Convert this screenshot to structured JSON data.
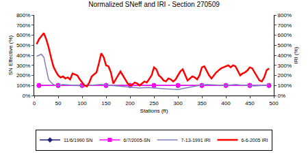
{
  "chart_data": {
    "type": "line",
    "title": "Normalized SNeff and IRI - Section 270509",
    "x_label": "Stations (ft)",
    "y_label": "SN Effective (%)",
    "y2_label": "IRI (%)",
    "xlim": [
      0,
      500
    ],
    "xticks": [
      0,
      50,
      100,
      150,
      200,
      250,
      300,
      350,
      400,
      450,
      500
    ],
    "ylim": [
      0,
      800
    ],
    "yticks": [
      {
        "value": 0,
        "label": "0%"
      },
      {
        "value": 100,
        "label": "100%"
      },
      {
        "value": 200,
        "label": "200%"
      },
      {
        "value": 300,
        "label": "300%"
      },
      {
        "value": 400,
        "label": "400%"
      },
      {
        "value": 500,
        "label": "500%"
      },
      {
        "value": 600,
        "label": "600%"
      },
      {
        "value": 700,
        "label": "700%"
      },
      {
        "value": 800,
        "label": "800%"
      }
    ],
    "y2lim": [
      0,
      800
    ],
    "y2ticks": [
      {
        "value": 0,
        "label": "0%"
      },
      {
        "value": 100,
        "label": "100%"
      },
      {
        "value": 200,
        "label": "200%"
      },
      {
        "value": 300,
        "label": "300%"
      },
      {
        "value": 400,
        "label": "400%"
      },
      {
        "value": 500,
        "label": "500%"
      },
      {
        "value": 600,
        "label": "600%"
      },
      {
        "value": 700,
        "label": "700%"
      },
      {
        "value": 800,
        "label": "800%"
      }
    ],
    "grid": false,
    "legend": "bottom",
    "series": [
      {
        "name": "11/6/1990 SN",
        "color": "#1f1f7a",
        "marker": "diamond",
        "line_style": "solid",
        "x": [
          10,
          50,
          100,
          150,
          200,
          250,
          300,
          350,
          400,
          450,
          490
        ],
        "values": [
          100,
          100,
          100,
          100,
          100,
          100,
          100,
          100,
          100,
          100,
          100
        ]
      },
      {
        "name": "6/7/2005-SN",
        "color": "#ff00ff",
        "marker": "square",
        "line_style": "solid",
        "x": [
          10,
          50,
          100,
          150,
          200,
          250,
          300,
          350,
          400,
          450,
          490
        ],
        "values": [
          100,
          100,
          100,
          100,
          100,
          100,
          100,
          100,
          100,
          100,
          100
        ]
      },
      {
        "name": "7-13-1991 IRI",
        "color": "#8080c0",
        "marker": "none",
        "line_style": "solid",
        "axis": "y2",
        "x": [
          5,
          10,
          15,
          20,
          25,
          30,
          35,
          40,
          45,
          50,
          60,
          70,
          80,
          90,
          100,
          110,
          120,
          130,
          140,
          150,
          160,
          170,
          180,
          190,
          200,
          210,
          220,
          230,
          240,
          250,
          260,
          270,
          280,
          290,
          300,
          310,
          320,
          330,
          340,
          350,
          360,
          370,
          380,
          390,
          400,
          410,
          420,
          430,
          440,
          450,
          460,
          470,
          480,
          490
        ],
        "values": [
          390,
          400,
          410,
          380,
          260,
          160,
          130,
          110,
          100,
          100,
          110,
          105,
          100,
          95,
          95,
          100,
          105,
          110,
          110,
          105,
          100,
          95,
          90,
          85,
          80,
          78,
          75,
          78,
          80,
          75,
          70,
          68,
          65,
          62,
          60,
          70,
          80,
          90,
          100,
          105,
          110,
          108,
          105,
          100,
          100,
          105,
          110,
          105,
          100,
          98,
          95,
          98,
          100,
          110
        ]
      },
      {
        "name": "6-6-2005 IRI",
        "color": "#ff0000",
        "marker": "none",
        "line_style": "solid",
        "axis": "y2",
        "x": [
          5,
          10,
          15,
          20,
          25,
          30,
          35,
          40,
          45,
          50,
          55,
          60,
          65,
          70,
          75,
          80,
          85,
          90,
          95,
          100,
          105,
          110,
          115,
          120,
          125,
          130,
          135,
          140,
          145,
          150,
          155,
          160,
          165,
          170,
          175,
          180,
          185,
          190,
          195,
          200,
          205,
          210,
          215,
          220,
          225,
          230,
          235,
          240,
          245,
          250,
          255,
          260,
          265,
          270,
          275,
          280,
          285,
          290,
          295,
          300,
          305,
          310,
          315,
          320,
          325,
          330,
          335,
          340,
          345,
          350,
          355,
          360,
          365,
          370,
          375,
          380,
          385,
          390,
          395,
          400,
          405,
          410,
          415,
          420,
          425,
          430,
          435,
          440,
          445,
          450,
          455,
          460,
          465,
          470,
          475,
          480,
          485,
          490
        ],
        "values": [
          510,
          560,
          590,
          620,
          560,
          480,
          380,
          290,
          240,
          200,
          180,
          190,
          170,
          180,
          160,
          220,
          210,
          200,
          160,
          130,
          100,
          90,
          130,
          190,
          210,
          230,
          320,
          420,
          380,
          300,
          290,
          230,
          120,
          160,
          200,
          240,
          200,
          160,
          120,
          100,
          110,
          130,
          120,
          100,
          120,
          140,
          130,
          170,
          200,
          280,
          260,
          200,
          180,
          150,
          140,
          170,
          160,
          140,
          160,
          200,
          240,
          260,
          200,
          150,
          170,
          190,
          180,
          160,
          200,
          280,
          290,
          250,
          200,
          170,
          200,
          230,
          250,
          270,
          280,
          290,
          300,
          280,
          300,
          290,
          240,
          200,
          220,
          230,
          250,
          280,
          270,
          230,
          190,
          150,
          140,
          180,
          250,
          270
        ]
      }
    ]
  }
}
